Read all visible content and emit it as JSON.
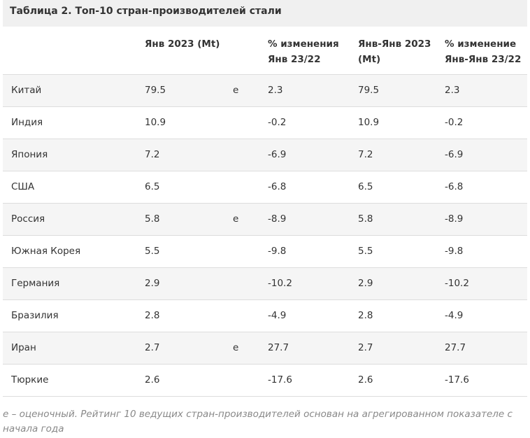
{
  "table": {
    "caption": "Таблица 2. Топ-10 стран-производителей стали",
    "headers": {
      "country": "",
      "jan2023": "Янв 2023 (Mt)",
      "flag": "",
      "pct_jan": "% изменения Янв 23/22",
      "janjan2023": "Янв-Янв 2023 (Mt)",
      "pct_janjan": "% изменение Янв-Янв 23/22"
    },
    "rows": [
      {
        "country": "Китай",
        "jan2023": "79.5",
        "flag": "e",
        "pct_jan": "2.3",
        "janjan2023": "79.5",
        "pct_janjan": "2.3"
      },
      {
        "country": "Индия",
        "jan2023": "10.9",
        "flag": "",
        "pct_jan": "-0.2",
        "janjan2023": "10.9",
        "pct_janjan": "-0.2"
      },
      {
        "country": "Япония",
        "jan2023": "7.2",
        "flag": "",
        "pct_jan": "-6.9",
        "janjan2023": "7.2",
        "pct_janjan": "-6.9"
      },
      {
        "country": "США",
        "jan2023": "6.5",
        "flag": "",
        "pct_jan": "-6.8",
        "janjan2023": "6.5",
        "pct_janjan": "-6.8"
      },
      {
        "country": "Россия",
        "jan2023": "5.8",
        "flag": "e",
        "pct_jan": "-8.9",
        "janjan2023": "5.8",
        "pct_janjan": "-8.9"
      },
      {
        "country": "Южная Корея",
        "jan2023": "5.5",
        "flag": "",
        "pct_jan": "-9.8",
        "janjan2023": "5.5",
        "pct_janjan": "-9.8"
      },
      {
        "country": "Германия",
        "jan2023": "2.9",
        "flag": "",
        "pct_jan": "-10.2",
        "janjan2023": "2.9",
        "pct_janjan": "-10.2"
      },
      {
        "country": "Бразилия",
        "jan2023": "2.8",
        "flag": "",
        "pct_jan": "-4.9",
        "janjan2023": "2.8",
        "pct_janjan": "-4.9"
      },
      {
        "country": "Иран",
        "jan2023": "2.7",
        "flag": "e",
        "pct_jan": "27.7",
        "janjan2023": "2.7",
        "pct_janjan": "27.7"
      },
      {
        "country": "Тюркие",
        "jan2023": "2.6",
        "flag": "",
        "pct_jan": "-17.6",
        "janjan2023": "2.6",
        "pct_janjan": "-17.6"
      }
    ]
  },
  "footnote": "е – оценочный. Рейтинг 10 ведущих стран-производителей основан на агрегированном показателе с начала года"
}
